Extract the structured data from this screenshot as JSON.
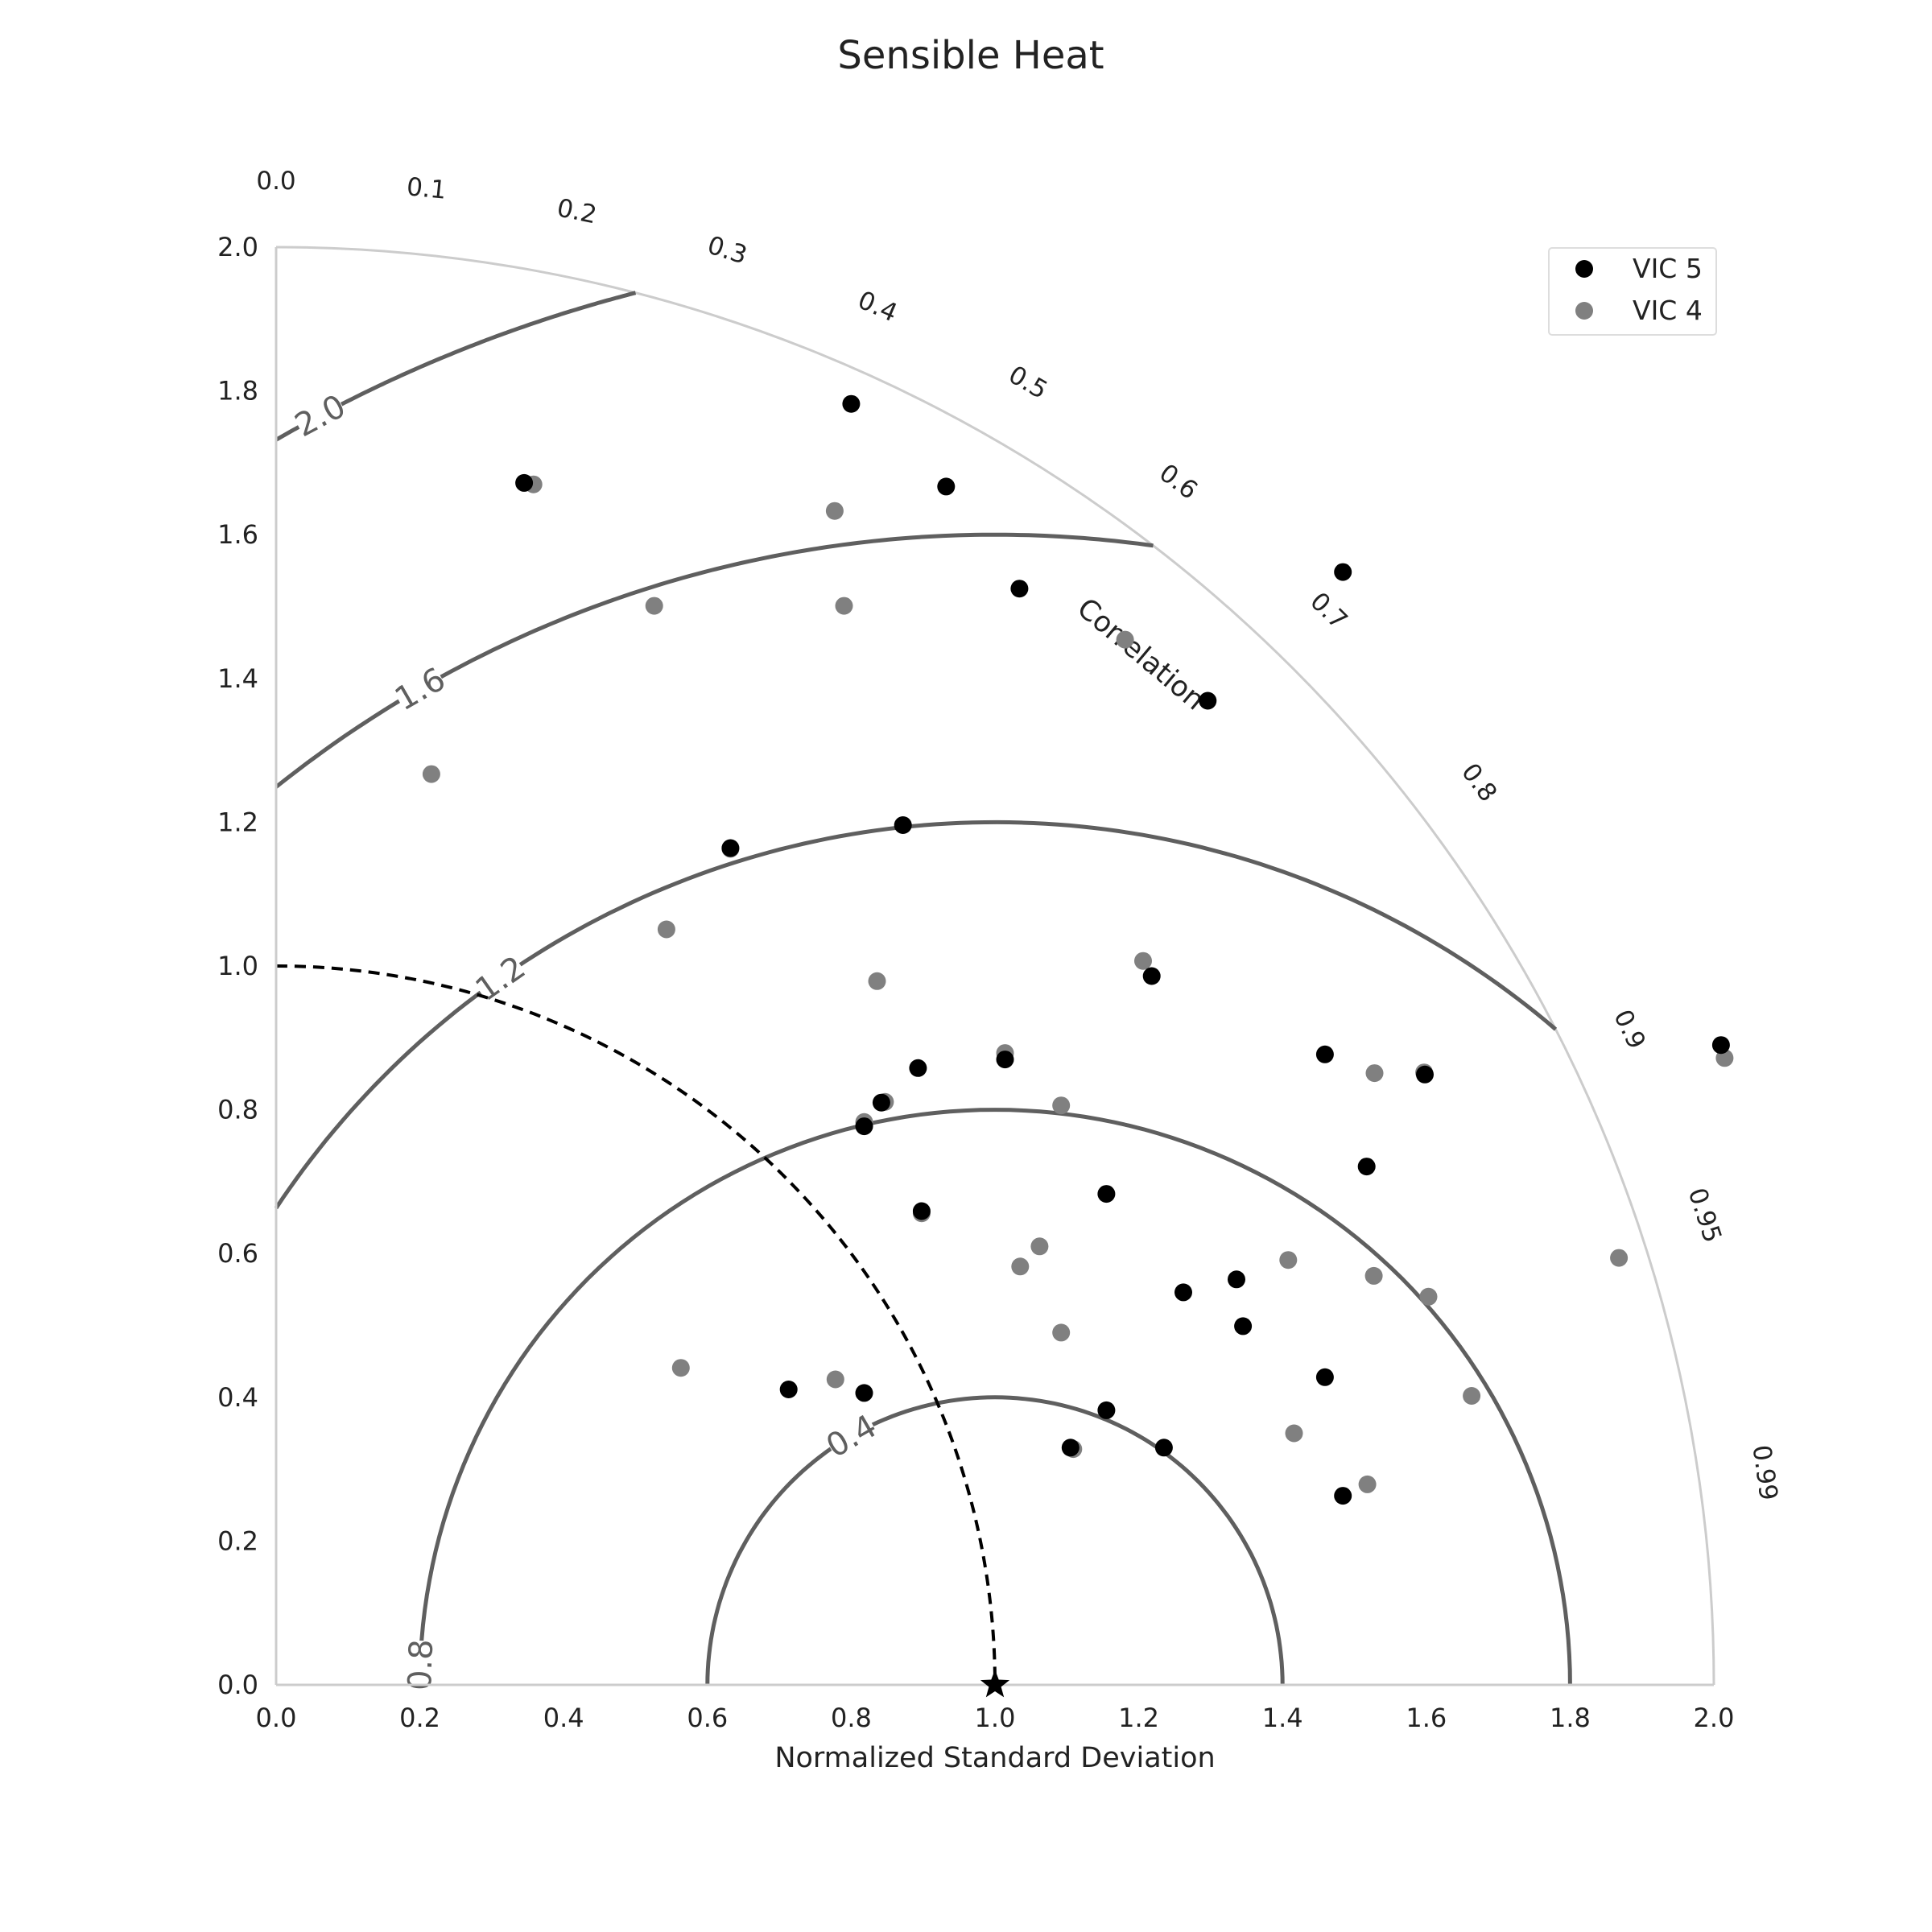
{
  "chart_data": {
    "type": "scatter",
    "title": "Sensible Heat",
    "xlabel": "Normalized Standard Deviation",
    "ylabel": "",
    "corr_label": "Correlation",
    "xlim": [
      0,
      2
    ],
    "ylim": [
      0,
      2
    ],
    "x_ticks": [
      "0.0",
      "0.2",
      "0.4",
      "0.6",
      "0.8",
      "1.0",
      "1.2",
      "1.4",
      "1.6",
      "1.8",
      "2.0"
    ],
    "y_ticks": [
      "0.0",
      "0.2",
      "0.4",
      "0.6",
      "0.8",
      "1.0",
      "1.2",
      "1.4",
      "1.6",
      "1.8",
      "2.0"
    ],
    "corr_ticks": [
      "0.0",
      "0.1",
      "0.2",
      "0.3",
      "0.4",
      "0.5",
      "0.6",
      "0.7",
      "0.8",
      "0.9",
      "0.95",
      "0.99"
    ],
    "rms_contours": [
      {
        "value": 0.4,
        "label": "0.4"
      },
      {
        "value": 0.8,
        "label": "0.8"
      },
      {
        "value": 1.2,
        "label": "1.2"
      },
      {
        "value": 1.6,
        "label": "1.6"
      },
      {
        "value": 2.0,
        "label": "2.0"
      }
    ],
    "reference_std": 1.0,
    "reference_marker": "star",
    "grid": false,
    "legend_position": "top-right",
    "colors": {
      "vic5": "#000000",
      "vic4": "#808080",
      "contour": "#5f5f5f",
      "outer_arc": "#cccccc"
    },
    "series": [
      {
        "name": "VIC 5",
        "points": [
          [
            0.345,
            1.672
          ],
          [
            0.8,
            1.782
          ],
          [
            0.932,
            1.667
          ],
          [
            1.034,
            1.525
          ],
          [
            1.484,
            1.548
          ],
          [
            1.296,
            1.369
          ],
          [
            0.632,
            1.164
          ],
          [
            0.872,
            1.196
          ],
          [
            1.218,
            0.986
          ],
          [
            1.014,
            0.87
          ],
          [
            0.893,
            0.858
          ],
          [
            0.842,
            0.81
          ],
          [
            0.818,
            0.777
          ],
          [
            0.898,
            0.659
          ],
          [
            1.155,
            0.683
          ],
          [
            1.459,
            0.877
          ],
          [
            1.598,
            0.849
          ],
          [
            1.517,
            0.721
          ],
          [
            2.01,
            0.89
          ],
          [
            1.336,
            0.564
          ],
          [
            1.262,
            0.546
          ],
          [
            1.345,
            0.499
          ],
          [
            1.459,
            0.428
          ],
          [
            0.713,
            0.411
          ],
          [
            0.818,
            0.406
          ],
          [
            1.155,
            0.382
          ],
          [
            1.105,
            0.33
          ],
          [
            1.235,
            0.33
          ],
          [
            1.484,
            0.263
          ]
        ]
      },
      {
        "name": "VIC 4",
        "points": [
          [
            0.358,
            1.67
          ],
          [
            0.777,
            1.633
          ],
          [
            0.526,
            1.501
          ],
          [
            0.79,
            1.501
          ],
          [
            1.181,
            1.454
          ],
          [
            0.216,
            1.267
          ],
          [
            0.632,
            1.163
          ],
          [
            0.543,
            1.051
          ],
          [
            0.836,
            0.979
          ],
          [
            1.206,
            1.007
          ],
          [
            1.014,
            0.879
          ],
          [
            0.847,
            0.811
          ],
          [
            1.092,
            0.806
          ],
          [
            0.818,
            0.783
          ],
          [
            1.528,
            0.851
          ],
          [
            1.597,
            0.852
          ],
          [
            2.015,
            0.872
          ],
          [
            0.898,
            0.656
          ],
          [
            1.062,
            0.61
          ],
          [
            1.035,
            0.582
          ],
          [
            1.408,
            0.591
          ],
          [
            1.527,
            0.569
          ],
          [
            1.603,
            0.54
          ],
          [
            1.868,
            0.594
          ],
          [
            1.092,
            0.49
          ],
          [
            0.563,
            0.441
          ],
          [
            0.778,
            0.425
          ],
          [
            1.663,
            0.402
          ],
          [
            1.416,
            0.35
          ],
          [
            1.109,
            0.328
          ],
          [
            1.518,
            0.279
          ]
        ]
      }
    ]
  }
}
